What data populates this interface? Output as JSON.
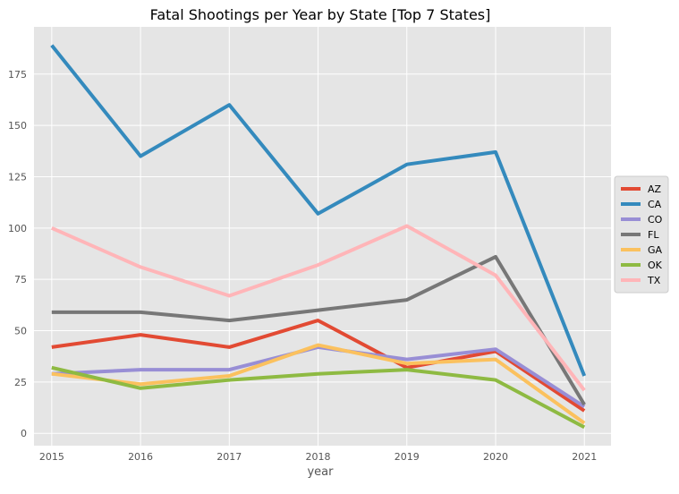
{
  "chart_data": {
    "type": "line",
    "title": "Fatal Shootings per Year by State [Top 7 States]",
    "xlabel": "year",
    "ylabel": "",
    "x": [
      2015,
      2016,
      2017,
      2018,
      2019,
      2020,
      2021
    ],
    "x_tick_labels": [
      "2015",
      "2016",
      "2017",
      "2018",
      "2019",
      "2020",
      "2021"
    ],
    "y_ticks": [
      0,
      25,
      50,
      75,
      100,
      125,
      150,
      175
    ],
    "y_tick_labels": [
      "0",
      "25",
      "50",
      "75",
      "100",
      "125",
      "150",
      "175"
    ],
    "xlim": [
      2014.8,
      2021.3
    ],
    "ylim": [
      -6,
      198
    ],
    "grid": true,
    "legend_position": "right",
    "series": [
      {
        "name": "AZ",
        "color": "#e24a33",
        "values": [
          42,
          48,
          42,
          55,
          32,
          40,
          11
        ]
      },
      {
        "name": "CA",
        "color": "#348abd",
        "values": [
          189,
          135,
          160,
          107,
          131,
          137,
          28
        ]
      },
      {
        "name": "CO",
        "color": "#988ed5",
        "values": [
          29,
          31,
          31,
          42,
          36,
          41,
          13
        ]
      },
      {
        "name": "FL",
        "color": "#777777",
        "values": [
          59,
          59,
          55,
          60,
          65,
          86,
          14
        ]
      },
      {
        "name": "GA",
        "color": "#fbc15e",
        "values": [
          29,
          24,
          28,
          43,
          34,
          36,
          5
        ]
      },
      {
        "name": "OK",
        "color": "#8eba42",
        "values": [
          32,
          22,
          26,
          29,
          31,
          26,
          3
        ]
      },
      {
        "name": "TX",
        "color": "#ffb5b8",
        "values": [
          100,
          81,
          67,
          82,
          101,
          77,
          21
        ]
      }
    ]
  }
}
